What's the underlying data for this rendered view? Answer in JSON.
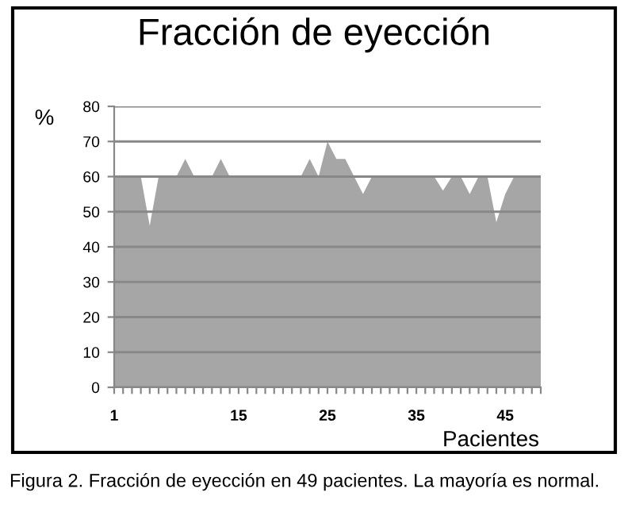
{
  "chart_data": {
    "type": "area",
    "title": "Fracción de eyección",
    "ylabel": "%",
    "xlabel": "Pacientes",
    "categories": [
      "1",
      null,
      null,
      null,
      null,
      null,
      null,
      null,
      null,
      null,
      null,
      null,
      null,
      null,
      "15",
      null,
      null,
      null,
      null,
      null,
      null,
      null,
      null,
      null,
      "25",
      null,
      null,
      null,
      null,
      null,
      null,
      null,
      null,
      null,
      "35",
      null,
      null,
      null,
      null,
      null,
      null,
      null,
      null,
      null,
      "45",
      null,
      null,
      null,
      null
    ],
    "series": [
      {
        "color": "#a6a6a6",
        "values": [
          60,
          60,
          60,
          60,
          46,
          60,
          60,
          60,
          65,
          60,
          60,
          60,
          65,
          60,
          60,
          60,
          60,
          60,
          60,
          60,
          60,
          60,
          65,
          60,
          70,
          65,
          65,
          60,
          55,
          60,
          60,
          60,
          60,
          60,
          60,
          60,
          60,
          56,
          60,
          60,
          55,
          60,
          60,
          47,
          55,
          60,
          60,
          60,
          60
        ]
      }
    ],
    "ylim": [
      0,
      80
    ],
    "yticks": [
      0,
      10,
      20,
      30,
      40,
      50,
      60,
      70,
      80
    ],
    "grid": "y",
    "legend": false,
    "annotations": [
      "Figura 2. Fracción de eyección en 49 pacientes. La mayoría es normal."
    ]
  }
}
